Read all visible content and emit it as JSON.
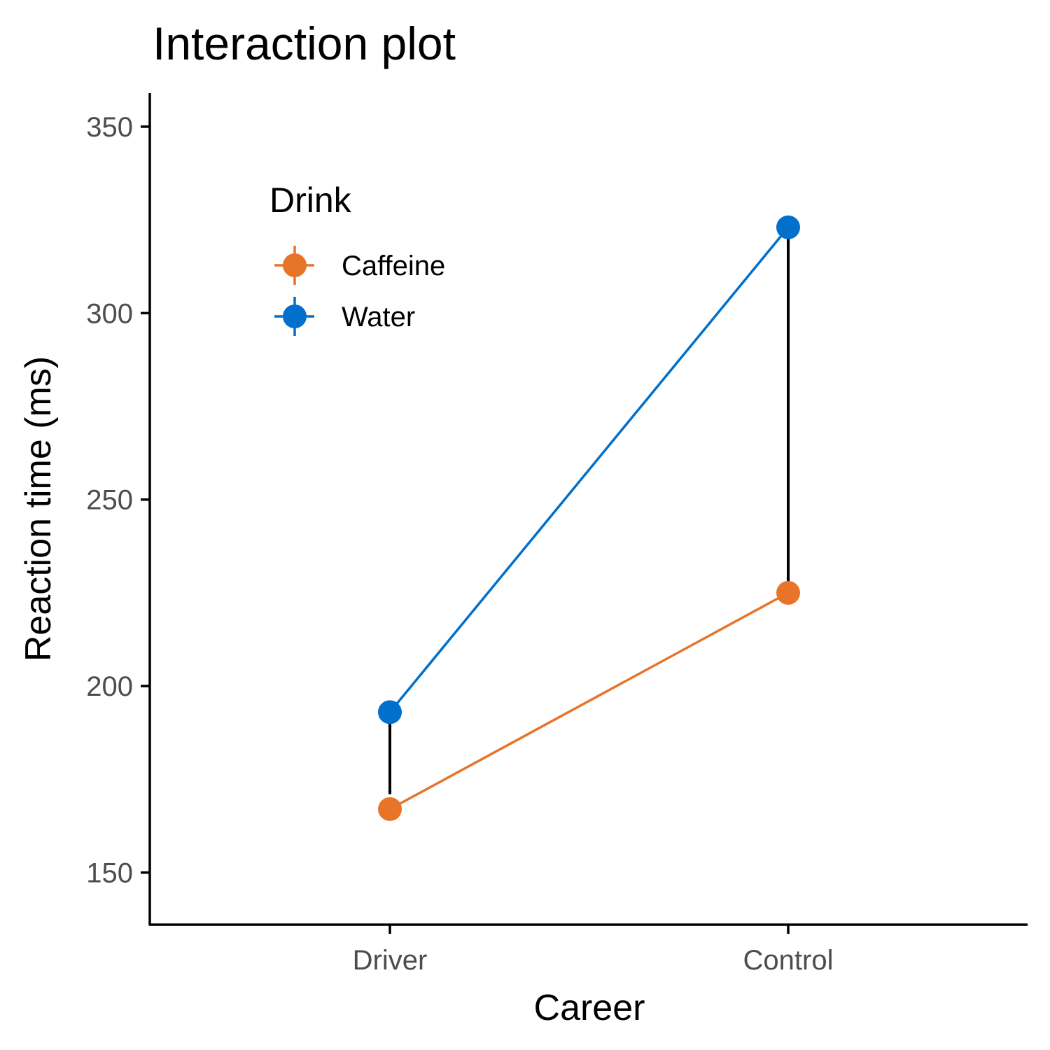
{
  "chart_data": {
    "type": "line",
    "title": "Interaction plot",
    "xlabel": "Career",
    "ylabel": "Reaction time (ms)",
    "categories": [
      "Driver",
      "Control"
    ],
    "ylim": [
      136,
      359
    ],
    "yticks": [
      150,
      200,
      250,
      300,
      350
    ],
    "grid": false,
    "legend": {
      "title": "Drink",
      "placement": "top-left"
    },
    "series": [
      {
        "name": "Caffeine",
        "color": "#E8742A",
        "values": [
          167,
          225
        ]
      },
      {
        "name": "Water",
        "color": "#0070CC",
        "values": [
          193,
          323
        ]
      }
    ],
    "annotations": [
      {
        "type": "double-arrow",
        "category": "Driver",
        "from": 190,
        "to": 171
      },
      {
        "type": "double-arrow",
        "category": "Control",
        "from": 320,
        "to": 228
      }
    ]
  }
}
